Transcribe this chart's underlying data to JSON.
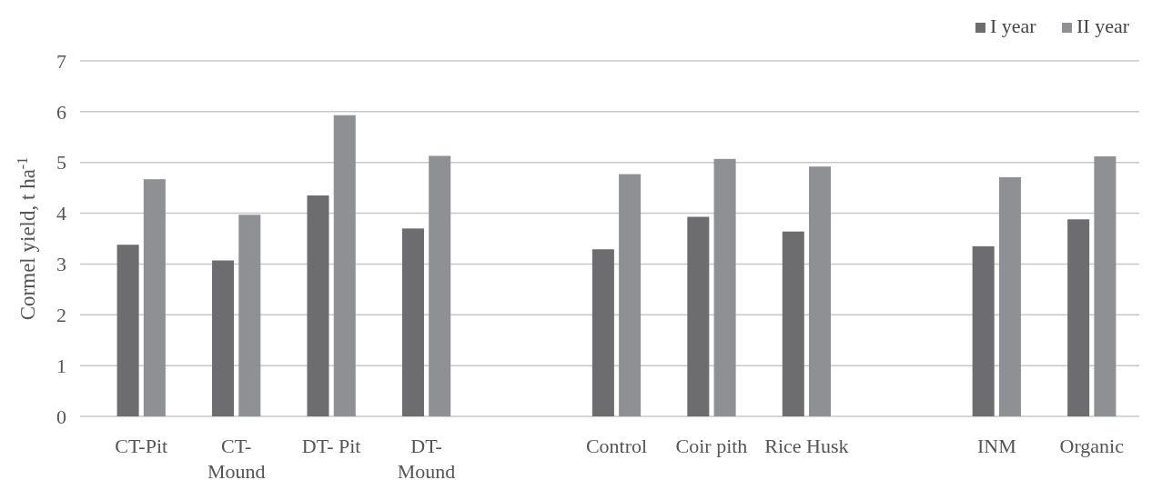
{
  "chart_data": {
    "type": "bar",
    "ylabel": "Cormel yield, t ha$^{-1}$",
    "categories": [
      "CT-Pit",
      "CT-Mound",
      "DT- Pit",
      "DT-Mound",
      null,
      "Control",
      "Coir pith",
      "Rice Husk",
      null,
      "INM",
      "Organic"
    ],
    "series": [
      {
        "name": "I year",
        "color": "#6d6d6f",
        "values": [
          3.38,
          3.07,
          4.35,
          3.7,
          null,
          3.29,
          3.93,
          3.64,
          null,
          3.35,
          3.88
        ]
      },
      {
        "name": "II year",
        "color": "#8f9094",
        "values": [
          4.67,
          3.97,
          5.93,
          5.13,
          null,
          4.77,
          5.07,
          4.92,
          null,
          4.71,
          5.12
        ]
      }
    ],
    "ylim": [
      0,
      7
    ],
    "yticks": [
      0,
      1,
      2,
      3,
      4,
      5,
      6,
      7
    ],
    "grid": "y",
    "legend": "top right"
  }
}
